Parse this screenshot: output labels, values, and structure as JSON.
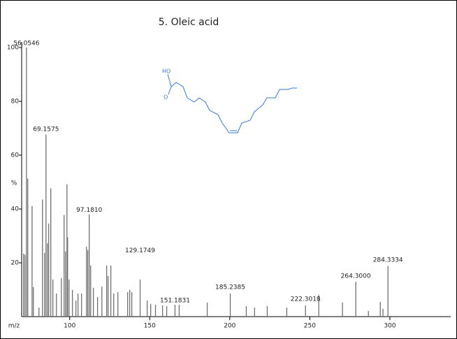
{
  "chart_data": {
    "type": "spectrum",
    "title": "5. Oleic acid",
    "xlabel": "m/z",
    "ylabel": "%",
    "x": [
      71.2,
      72.1,
      73.0,
      73.8,
      76.5,
      77.3,
      80.8,
      83.0,
      84.3,
      85.2,
      86.1,
      86.9,
      88.2,
      89.5,
      91.7,
      94.8,
      96.5,
      97.4,
      98.3,
      98.7,
      99.6,
      101.7,
      103.9,
      105.2,
      107.4,
      110.5,
      111.3,
      112.2,
      113.1,
      114.8,
      117.4,
      120.1,
      123.1,
      124.0,
      125.7,
      127.5,
      130.1,
      136.2,
      137.5,
      138.8,
      144.0,
      148.4,
      150.6,
      153.6,
      158.0,
      160.6,
      165.8,
      168.4,
      185.9,
      200.3,
      210.3,
      215.5,
      223.4,
      235.6,
      247.3,
      255.6,
      270.4,
      278.7,
      286.6,
      294.0,
      295.7,
      298.8
    ],
    "values": [
      23.4,
      23,
      100,
      51.3,
      41.1,
      11,
      3.4,
      43.5,
      23.7,
      67.7,
      27.3,
      34.6,
      47.7,
      13.8,
      8.6,
      14.3,
      37.8,
      24.2,
      49.2,
      29.4,
      13.8,
      9.9,
      6.0,
      8.6,
      8.6,
      26.0,
      24.7,
      38.0,
      19.0,
      10.7,
      7.3,
      11.2,
      19.0,
      15.1,
      19.0,
      8.6,
      9.1,
      9.1,
      9.9,
      9.1,
      13.8,
      6.0,
      4.7,
      4.4,
      4.2,
      3.9,
      4.4,
      4.4,
      5.2,
      8.6,
      3.9,
      3.4,
      3.9,
      3.4,
      4.2,
      8.1,
      5.2,
      13.0,
      2.1,
      5.5,
      2.9,
      18.8
    ],
    "color": "#707070",
    "annotations": [
      {
        "text": "56.0546",
        "x": 73.0,
        "y": 100
      },
      {
        "text": "69.1575",
        "x": 85.2,
        "y": 68
      },
      {
        "text": "97.1810",
        "x": 112.2,
        "y": 38
      },
      {
        "text": "129.1749",
        "x": 144.0,
        "y": 23
      },
      {
        "text": "151.1831",
        "x": 165.8,
        "y": 4.4
      },
      {
        "text": "185.2385",
        "x": 200.3,
        "y": 9.4
      },
      {
        "text": "222.3018",
        "x": 247.3,
        "y": 5
      },
      {
        "text": "264.3000",
        "x": 278.7,
        "y": 13.5
      },
      {
        "text": "284.3334",
        "x": 298.8,
        "y": 19.5
      }
    ],
    "structure": {
      "hydroxyl": "HO",
      "carbonyl": "O"
    },
    "xlim": [
      70,
      338
    ],
    "ylim": [
      0,
      100
    ],
    "xticks": [
      100,
      150,
      200,
      250,
      300
    ],
    "yticks": [
      20,
      40,
      60,
      80,
      100
    ]
  }
}
